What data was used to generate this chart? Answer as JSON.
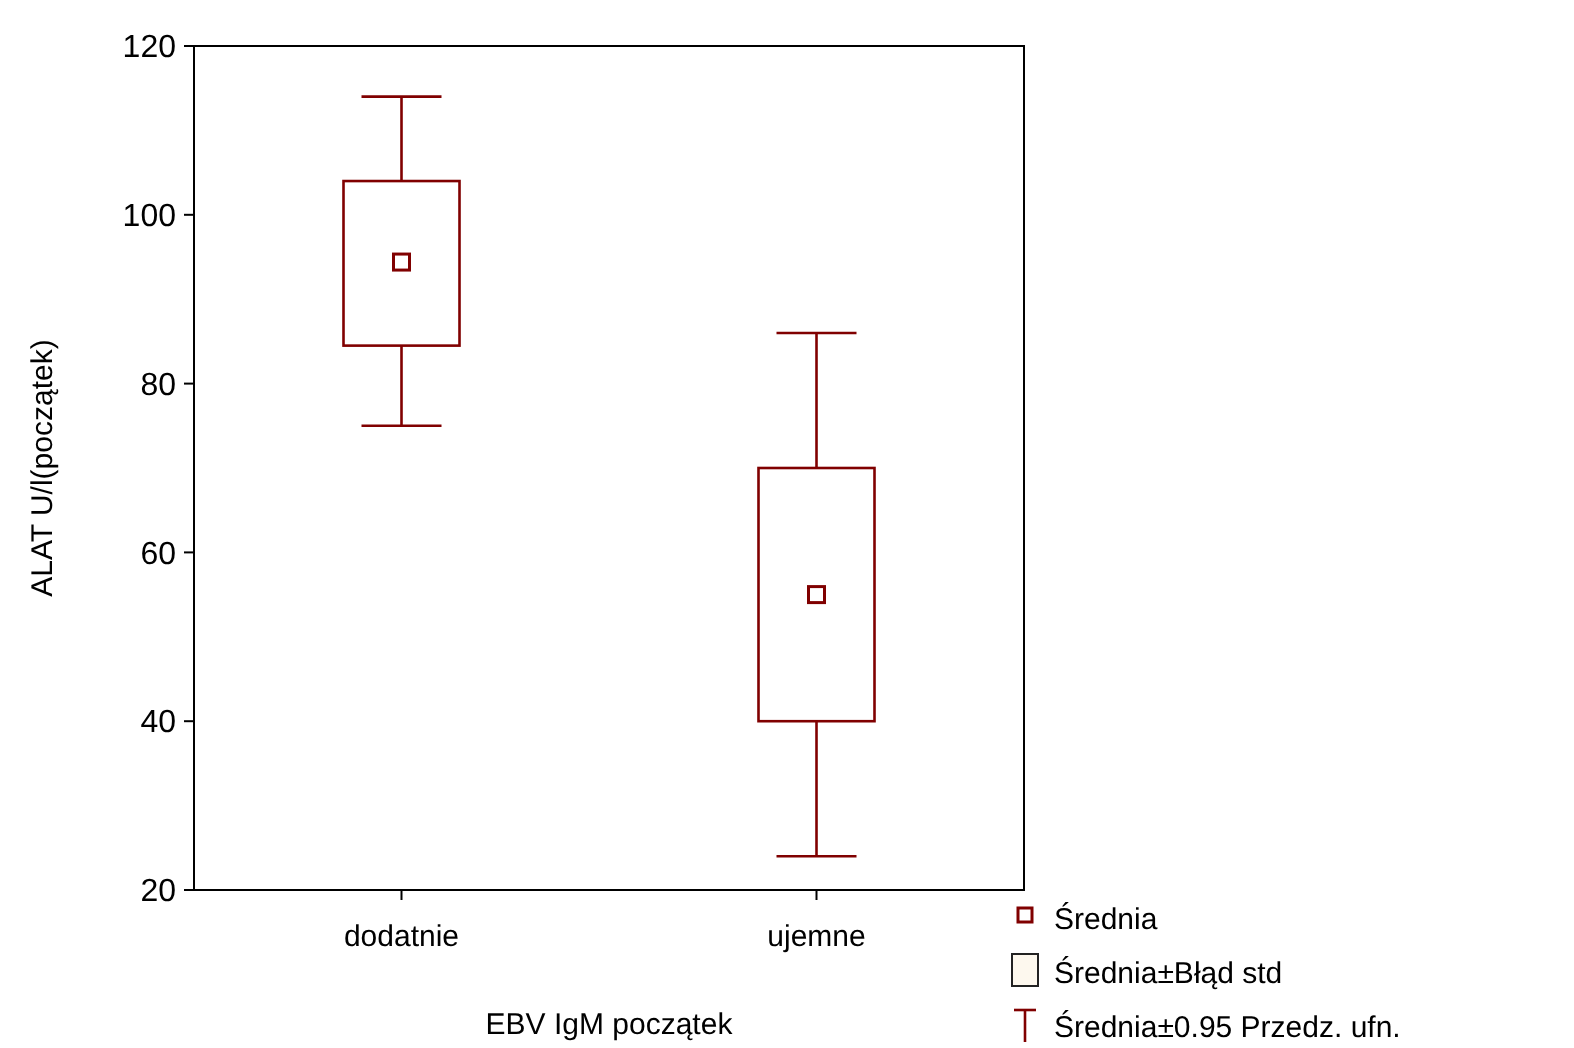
{
  "chart_data": {
    "type": "box",
    "xlabel": "EBV IgM początek",
    "ylabel": "ALAT U/l(początek)",
    "categories": [
      "dodatnie",
      "ujemne"
    ],
    "boxes": [
      {
        "low": 75,
        "q1": 84.5,
        "median": 94.4,
        "q3": 104,
        "high": 114
      },
      {
        "low": 24,
        "q1": 40,
        "median": 55,
        "q3": 70,
        "high": 86
      }
    ],
    "color": "#800000",
    "ylim": [
      20,
      120
    ],
    "yticks": [
      20,
      40,
      60,
      80,
      100,
      120
    ],
    "grid": false,
    "annotations": [
      "Średnia",
      "Średnia±Błąd std",
      "Średnia±0.95 Przedz. ufn."
    ]
  }
}
